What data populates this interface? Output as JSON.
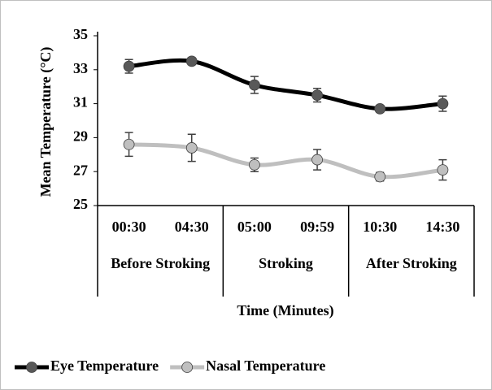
{
  "chart_data": {
    "type": "line",
    "ylabel": "Mean Temperature (°C)",
    "xlabel": "Time (Minutes)",
    "categories": [
      "00:30",
      "04:30",
      "05:00",
      "09:59",
      "10:30",
      "14:30"
    ],
    "groups": [
      "Before Stroking",
      "Stroking",
      "After Stroking"
    ],
    "series": [
      {
        "name": "Eye Temperature",
        "color": "#000000",
        "marker_color": "#595959",
        "values": [
          33.2,
          33.5,
          32.1,
          31.5,
          30.7,
          31.0
        ],
        "errors": [
          0.4,
          0.2,
          0.5,
          0.4,
          0.2,
          0.45
        ]
      },
      {
        "name": "Nasal Temperature",
        "color": "#bfbfbf",
        "marker_color": "#bfbfbf",
        "values": [
          28.6,
          28.4,
          27.4,
          27.7,
          26.7,
          27.1
        ],
        "errors": [
          0.7,
          0.8,
          0.4,
          0.6,
          0.25,
          0.6
        ]
      }
    ],
    "ylim": [
      25,
      35
    ],
    "yticks": [
      25,
      27,
      29,
      31,
      33,
      35
    ],
    "smooth": true,
    "legend": "bottom"
  }
}
